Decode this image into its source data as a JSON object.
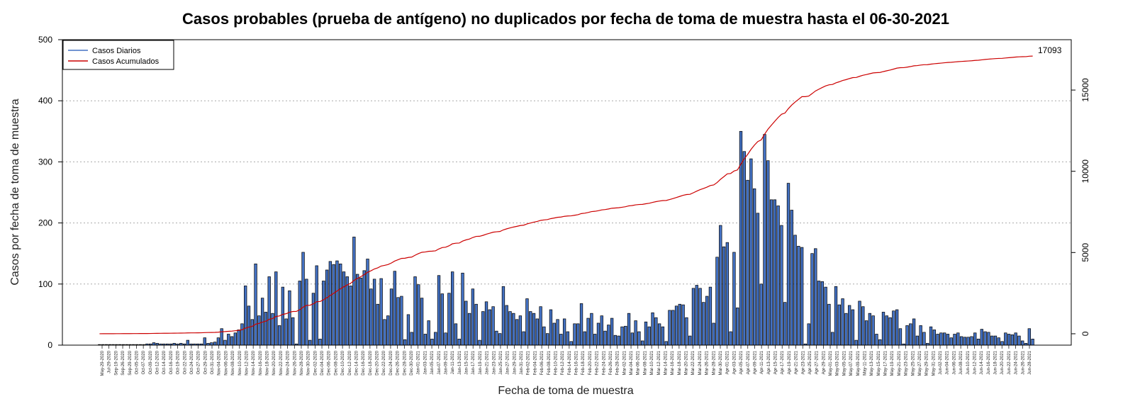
{
  "chart_data": {
    "type": "bar",
    "title": "Casos probables (prueba de antígeno) no duplicados por fecha de toma de muestra hasta el 06-30-2021",
    "xlabel": "Fecha de toma de muestra",
    "ylabel": "Casos por fecha de toma de muestra",
    "ylim": [
      0,
      500
    ],
    "y_ticks": [
      0,
      100,
      200,
      300,
      400,
      500
    ],
    "y2lim": [
      -700,
      18100
    ],
    "y2_ticks": [
      0,
      5000,
      10000,
      15000
    ],
    "grid": "horizontal-dotted",
    "legend_position": "top-left",
    "end_label": "17093",
    "colors": {
      "bar_fill": "#4472c4",
      "bar_stroke": "#000000",
      "cumulative_line": "#cc0000",
      "grid": "#aaaaaa"
    },
    "tick_labels": [
      "May-29-2020",
      "Jul-29-2020",
      "Sep-19-2020",
      "Sep-26-2020",
      "Sep-29-2020",
      "Oct-05-2020",
      "Oct-07-2020",
      "Oct-09-2020",
      "Oct-12-2020",
      "Oct-14-2020",
      "Oct-16-2020",
      "Oct-19-2020",
      "Oct-22-2020",
      "Oct-24-2020",
      "Oct-27-2020",
      "Oct-29-2020",
      "Oct-31-2020",
      "Nov-04-2020",
      "Nov-06-2020",
      "Nov-08-2020",
      "Nov-10-2020",
      "Nov-12-2020",
      "Nov-14-2020",
      "Nov-16-2020",
      "Nov-18-2020",
      "Nov-20-2020",
      "Nov-22-2020",
      "Nov-24-2020",
      "Nov-26-2020",
      "Nov-28-2020",
      "Nov-30-2020",
      "Dec-02-2020",
      "Dec-04-2020",
      "Dec-06-2020",
      "Dec-08-2020",
      "Dec-10-2020",
      "Dec-12-2020",
      "Dec-14-2020",
      "Dec-16-2020",
      "Dec-18-2020",
      "Dec-20-2020",
      "Dec-22-2020",
      "Dec-24-2020",
      "Dec-26-2020",
      "Dec-28-2020",
      "Dec-30-2020",
      "Jan-01-2021",
      "Jan-03-2021",
      "Jan-05-2021",
      "Jan-07-2021",
      "Jan-09-2021",
      "Jan-11-2021",
      "Jan-13-2021",
      "Jan-15-2021",
      "Jan-17-2021",
      "Jan-19-2021",
      "Jan-21-2021",
      "Jan-23-2021",
      "Jan-25-2021",
      "Jan-27-2021",
      "Jan-29-2021",
      "Jan-31-2021",
      "Feb-02-2021",
      "Feb-04-2021",
      "Feb-06-2021",
      "Feb-08-2021",
      "Feb-10-2021",
      "Feb-12-2021",
      "Feb-14-2021",
      "Feb-16-2021",
      "Feb-18-2021",
      "Feb-20-2021",
      "Feb-22-2021",
      "Feb-24-2021",
      "Feb-26-2021",
      "Feb-28-2021",
      "Mar-02-2021",
      "Mar-04-2021",
      "Mar-06-2021",
      "Mar-08-2021",
      "Mar-10-2021",
      "Mar-12-2021",
      "Mar-14-2021",
      "Mar-16-2021",
      "Mar-18-2021",
      "Mar-20-2021",
      "Mar-22-2021",
      "Mar-24-2021",
      "Mar-26-2021",
      "Mar-28-2021",
      "Mar-30-2021",
      "Apr-01-2021",
      "Apr-03-2021",
      "Apr-05-2021",
      "Apr-07-2021",
      "Apr-09-2021",
      "Apr-11-2021",
      "Apr-13-2021",
      "Apr-15-2021",
      "Apr-17-2021",
      "Apr-19-2021",
      "Apr-21-2021",
      "Apr-23-2021",
      "Apr-25-2021",
      "Apr-27-2021",
      "Apr-29-2021",
      "May-01-2021",
      "May-03-2021",
      "May-05-2021",
      "May-07-2021",
      "May-09-2021",
      "May-11-2021",
      "May-13-2021",
      "May-15-2021",
      "May-17-2021",
      "May-19-2021",
      "May-21-2021",
      "May-23-2021",
      "May-25-2021",
      "May-27-2021",
      "May-29-2021",
      "May-31-2021",
      "Jun-02-2021",
      "Jun-04-2021",
      "Jun-06-2021",
      "Jun-08-2021",
      "Jun-10-2021",
      "Jun-12-2021",
      "Jun-14-2021",
      "Jun-16-2021",
      "Jun-18-2021",
      "Jun-20-2021",
      "Jun-22-2021",
      "Jun-24-2021",
      "Jun-26-2021",
      "Jun-28-2021"
    ],
    "series": [
      {
        "name": "Casos Diarios",
        "type": "bar",
        "values": [
          1,
          1,
          1,
          1,
          1,
          1,
          1,
          1,
          1,
          1,
          1,
          1,
          1,
          1,
          2,
          2,
          4,
          3,
          2,
          2,
          2,
          2,
          3,
          2,
          3,
          2,
          8,
          2,
          2,
          2,
          2,
          12,
          3,
          4,
          5,
          12,
          27,
          8,
          18,
          14,
          20,
          25,
          35,
          97,
          64,
          42,
          133,
          48,
          77,
          54,
          112,
          52,
          120,
          32,
          95,
          43,
          89,
          45,
          2,
          105,
          152,
          108,
          8,
          85,
          130,
          10,
          105,
          123,
          137,
          132,
          138,
          133,
          120,
          112,
          97,
          177,
          116,
          110,
          122,
          141,
          92,
          108,
          67,
          109,
          42,
          48,
          92,
          121,
          78,
          80,
          9,
          50,
          21,
          112,
          99,
          77,
          18,
          40,
          10,
          21,
          114,
          84,
          20,
          85,
          120,
          35,
          10,
          118,
          72,
          52,
          92,
          67,
          8,
          55,
          71,
          58,
          63,
          23,
          19,
          96,
          65,
          55,
          52,
          42,
          48,
          22,
          76,
          55,
          52,
          43,
          63,
          30,
          19,
          58,
          36,
          42,
          18,
          43,
          22,
          6,
          35,
          35,
          68,
          22,
          44,
          52,
          18,
          36,
          48,
          23,
          33,
          44,
          16,
          15,
          30,
          31,
          52,
          20,
          40,
          22,
          7,
          38,
          30,
          53,
          45,
          35,
          30,
          6,
          57,
          57,
          64,
          67,
          66,
          45,
          15,
          93,
          98,
          93,
          70,
          80,
          95,
          36,
          144,
          196,
          161,
          168,
          22,
          152,
          61,
          350,
          317,
          270,
          305,
          256,
          216,
          100,
          345,
          302,
          238,
          238,
          228,
          196,
          70,
          265,
          221,
          180,
          162,
          160,
          2,
          35,
          150,
          158,
          105,
          104,
          95,
          67,
          21,
          96,
          66,
          76,
          52,
          65,
          58,
          8,
          72,
          63,
          40,
          52,
          48,
          18,
          9,
          54,
          48,
          45,
          56,
          58,
          27,
          2,
          32,
          35,
          43,
          15,
          32,
          21,
          3,
          30,
          25,
          18,
          20,
          20,
          18,
          12,
          18,
          20,
          14,
          13,
          13,
          14,
          20,
          10,
          26,
          22,
          21,
          15,
          15,
          12,
          6,
          20,
          18,
          17,
          20,
          15,
          7,
          3,
          27,
          10
        ]
      },
      {
        "name": "Casos Acumulados",
        "type": "line",
        "values": []
      }
    ]
  }
}
